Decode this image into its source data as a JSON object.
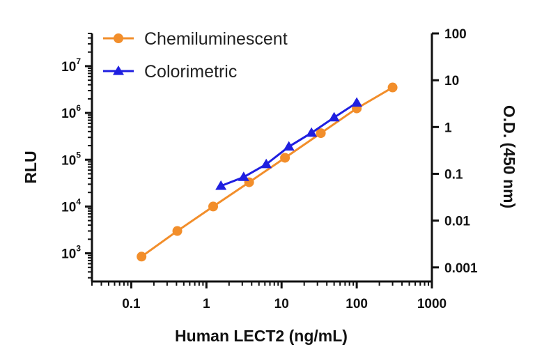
{
  "chart_data": {
    "type": "scatter",
    "xlabel": "Human LECT2 (ng/mL)",
    "ylabel": "RLU",
    "ylabel_right": "O.D. (450 nm)",
    "x_scale": "log",
    "y_scale": "log",
    "y_right_scale": "log",
    "xlim": [
      0.03,
      1000
    ],
    "ylim": [
      250,
      50000000
    ],
    "y_right_lim": [
      0.0005,
      100
    ],
    "x_ticks": [
      "0.1",
      "1",
      "10",
      "100",
      "1000"
    ],
    "x_tick_values": [
      0.1,
      1,
      10,
      100,
      1000
    ],
    "y_ticks": [
      {
        "base": "10",
        "exp": "3",
        "value": 1000
      },
      {
        "base": "10",
        "exp": "4",
        "value": 10000
      },
      {
        "base": "10",
        "exp": "5",
        "value": 100000
      },
      {
        "base": "10",
        "exp": "6",
        "value": 1000000
      },
      {
        "base": "10",
        "exp": "7",
        "value": 10000000
      }
    ],
    "y_right_ticks": [
      "0.001",
      "0.01",
      "0.1",
      "1",
      "10",
      "100"
    ],
    "y_right_tick_values": [
      0.001,
      0.01,
      0.1,
      1,
      10,
      100
    ],
    "grid": false,
    "legend_position": "top-left",
    "series": [
      {
        "name": "Chemiluminescent",
        "axis": "left",
        "marker": "circle",
        "color": "#F28E2B",
        "x": [
          0.137,
          0.41,
          1.23,
          3.7,
          11.1,
          33.3,
          100,
          300
        ],
        "y": [
          850,
          3000,
          10000,
          33000,
          110000,
          370000,
          1250000,
          3500000
        ]
      },
      {
        "name": "Colorimetric",
        "axis": "right",
        "marker": "triangle",
        "color": "#1F1FE0",
        "x": [
          1.56,
          3.13,
          6.25,
          12.5,
          25,
          50,
          100
        ],
        "y": [
          0.055,
          0.085,
          0.16,
          0.38,
          0.75,
          1.6,
          3.3
        ]
      }
    ]
  }
}
